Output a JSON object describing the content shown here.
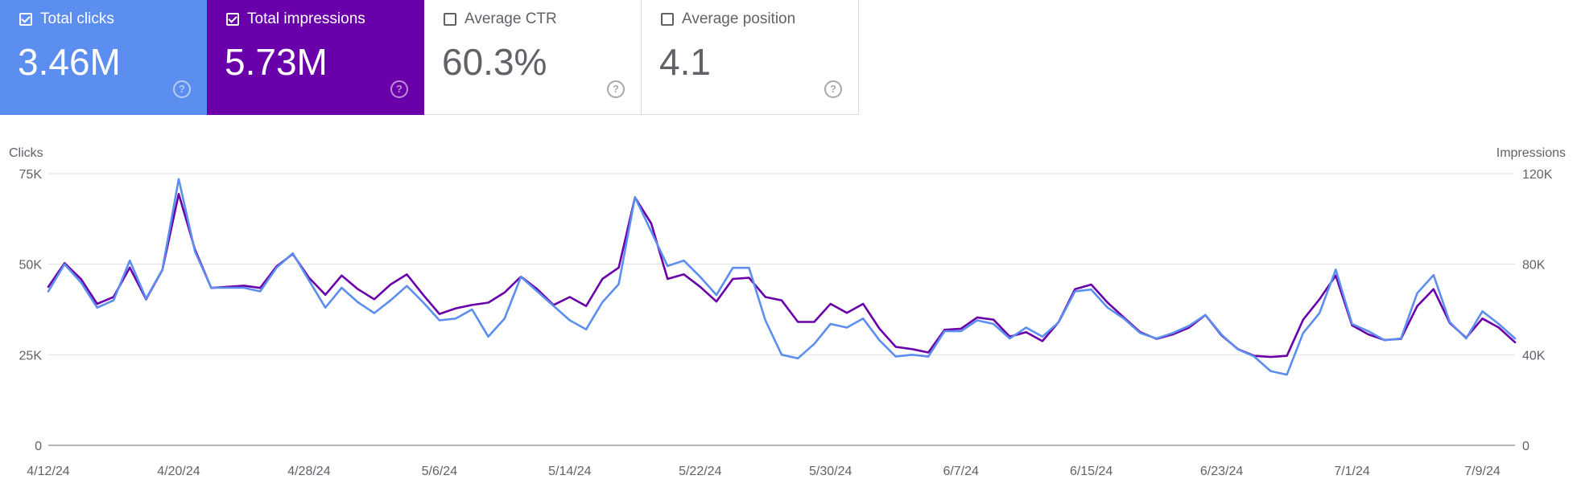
{
  "metrics": {
    "clicks": {
      "label": "Total clicks",
      "value": "3.46M",
      "checked": true
    },
    "impressions": {
      "label": "Total impressions",
      "value": "5.73M",
      "checked": true
    },
    "ctr": {
      "label": "Average CTR",
      "value": "60.3%",
      "checked": false
    },
    "position": {
      "label": "Average position",
      "value": "4.1",
      "checked": false
    }
  },
  "colors": {
    "clicks": "#5c8ef0",
    "impressions": "#6a00aa",
    "grid": "#e0e0e0",
    "axis": "#9e9e9e"
  },
  "icons": {
    "help": "help-circle-icon",
    "check": "check-icon"
  },
  "chart_data": {
    "type": "line",
    "x_start": "4/12/24",
    "x_end": "7/11/24",
    "x_ticks": [
      "4/12/24",
      "4/20/24",
      "4/28/24",
      "5/6/24",
      "5/14/24",
      "5/22/24",
      "5/30/24",
      "6/7/24",
      "6/15/24",
      "6/23/24",
      "7/1/24",
      "7/9/24"
    ],
    "y_left": {
      "label": "Clicks",
      "ylim": [
        0,
        75000
      ],
      "ticks": [
        {
          "v": 0,
          "t": "0"
        },
        {
          "v": 25000,
          "t": "25K"
        },
        {
          "v": 50000,
          "t": "50K"
        },
        {
          "v": 75000,
          "t": "75K"
        }
      ]
    },
    "y_right": {
      "label": "Impressions",
      "ylim": [
        0,
        120000
      ],
      "ticks": [
        {
          "v": 0,
          "t": "0"
        },
        {
          "v": 40000,
          "t": "40K"
        },
        {
          "v": 80000,
          "t": "80K"
        },
        {
          "v": 120000,
          "t": "120K"
        }
      ]
    },
    "grid": true,
    "series": [
      {
        "name": "Clicks",
        "axis": "left",
        "color": "#5c8ef0",
        "values": [
          42500,
          50000,
          45000,
          38000,
          40000,
          51000,
          40500,
          48500,
          73500,
          53500,
          43500,
          43500,
          43500,
          42500,
          49000,
          53000,
          45500,
          38000,
          43500,
          39500,
          36500,
          40000,
          44000,
          39500,
          34500,
          35000,
          37500,
          30000,
          35000,
          46500,
          42500,
          38500,
          34500,
          32000,
          39500,
          44500,
          68500,
          59000,
          49500,
          51000,
          46500,
          41500,
          49000,
          49000,
          34500,
          25000,
          24000,
          28000,
          33500,
          32500,
          35000,
          29000,
          24500,
          25000,
          24500,
          31500,
          31500,
          34500,
          33500,
          29500,
          32500,
          30000,
          34000,
          42500,
          43000,
          38000,
          35000,
          31000,
          29500,
          31000,
          33000,
          36000,
          30500,
          26500,
          24500,
          20500,
          19500,
          31000,
          36500,
          48500,
          33500,
          31500,
          29000,
          29500,
          42000,
          47000,
          34000,
          29500,
          37000,
          33500,
          29500
        ]
      },
      {
        "name": "Impressions",
        "axis": "right",
        "color": "#6a00aa",
        "values": [
          70000,
          80500,
          73500,
          62500,
          65500,
          78500,
          64500,
          77500,
          111000,
          86500,
          69500,
          70000,
          70500,
          69500,
          79000,
          84500,
          74000,
          66500,
          75000,
          69000,
          64500,
          71000,
          75500,
          66500,
          58000,
          60500,
          62000,
          63000,
          67500,
          74500,
          69000,
          62000,
          65500,
          61500,
          73500,
          78500,
          109500,
          98000,
          73500,
          75500,
          70000,
          63500,
          73500,
          74000,
          65500,
          64000,
          54500,
          54500,
          62500,
          58500,
          62500,
          51500,
          43500,
          42500,
          41000,
          51000,
          51500,
          56500,
          55500,
          48000,
          50000,
          46000,
          54500,
          69000,
          71000,
          63000,
          56500,
          50000,
          47000,
          49000,
          52000,
          57500,
          48500,
          42500,
          39500,
          39000,
          39500,
          55500,
          64500,
          75000,
          53000,
          49000,
          46500,
          47000,
          61500,
          69000,
          54000,
          47500,
          56000,
          52000,
          45500
        ]
      }
    ]
  }
}
